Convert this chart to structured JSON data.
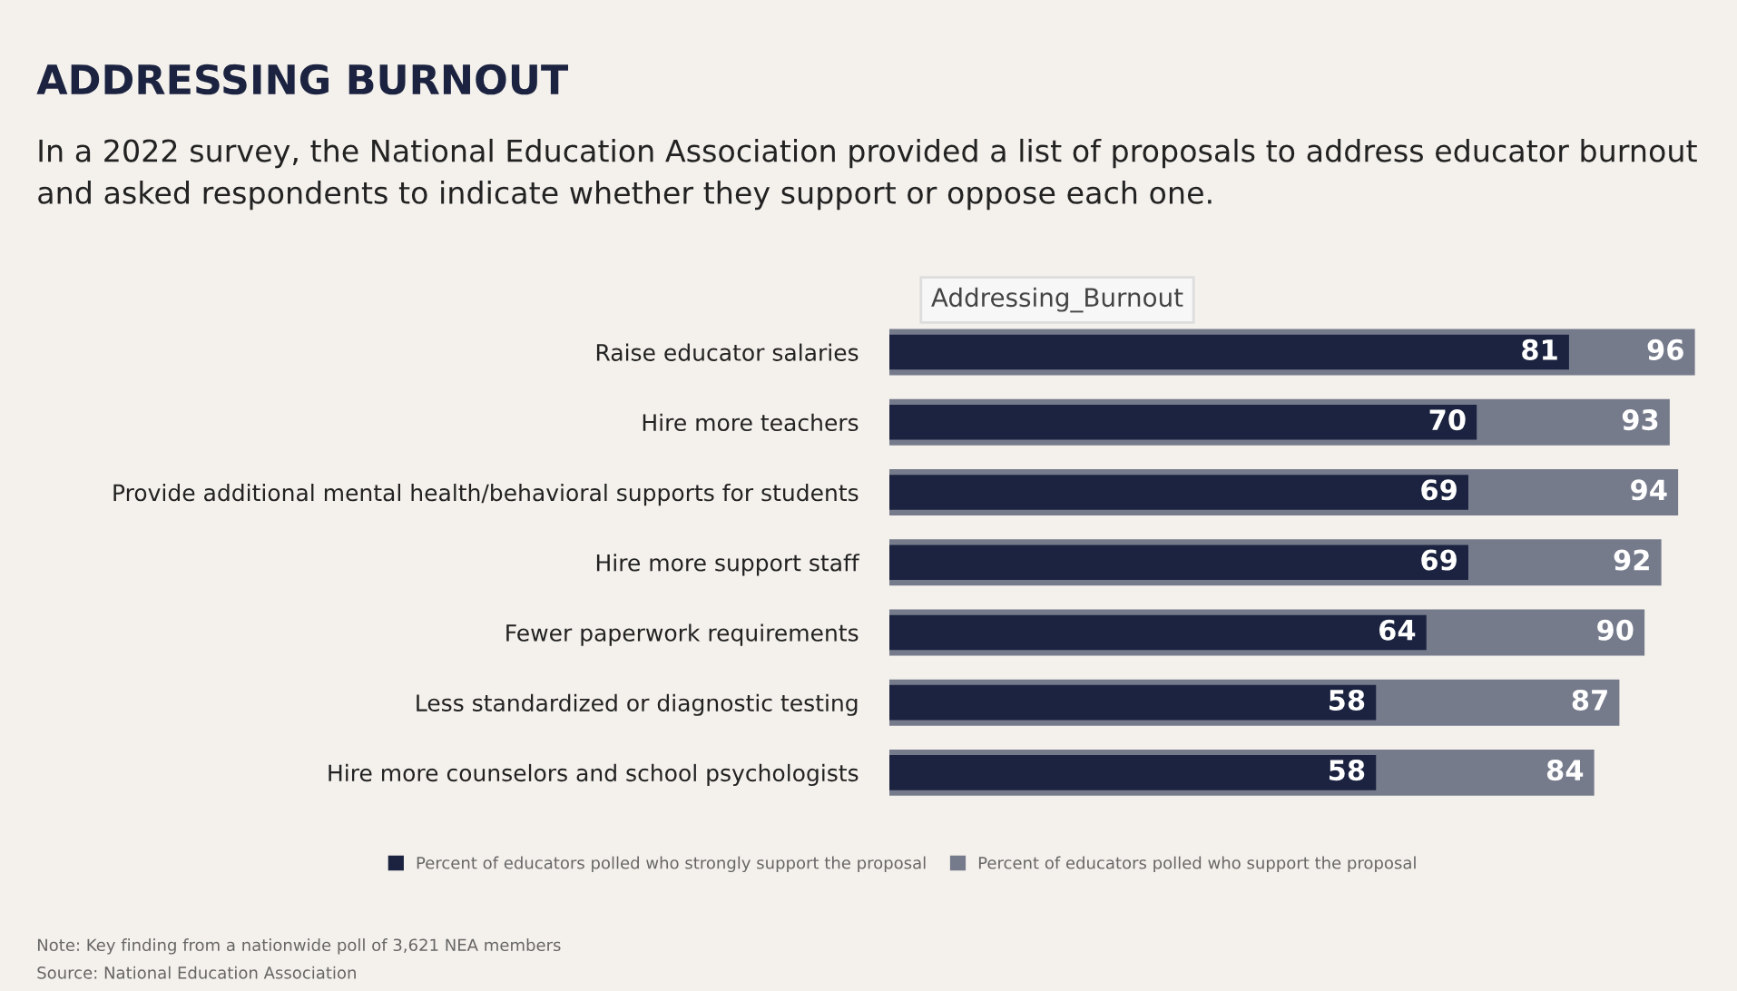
{
  "chart_data": {
    "type": "bar",
    "orientation": "horizontal",
    "title": "ADDRESSING BURNOUT",
    "subtitle": "In a 2022 survey, the National Education Association provided a list of proposals to address educator burnout and asked respondents to indicate whether they support or oppose each one.",
    "categories": [
      "Raise educator salaries",
      "Hire more teachers",
      "Provide additional mental health/behavioral supports for students",
      "Hire more support staff",
      "Fewer paperwork requirements",
      "Less standardized or diagnostic testing",
      "Hire more counselors and school psychologists"
    ],
    "series": [
      {
        "name": "Percent of educators polled who strongly support the proposal",
        "color": "#1b2340",
        "values": [
          81,
          70,
          69,
          69,
          64,
          58,
          58
        ]
      },
      {
        "name": "Percent of educators polled who support the proposal",
        "color": "#767b8c",
        "values": [
          96,
          93,
          94,
          92,
          90,
          87,
          84
        ]
      }
    ],
    "tick_labels": "y",
    "data_labels": true,
    "legend": "bottom",
    "grid": false,
    "annotations": [
      "Addressing_Burnout",
      "Note: Key finding from a nationwide poll of 3,621 NEA members",
      "Source: National Education Association"
    ]
  }
}
